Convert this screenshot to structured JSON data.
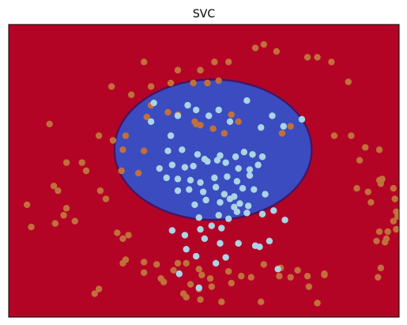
{
  "chart_data": {
    "type": "scatter",
    "title": "SVC",
    "xlabel": "",
    "ylabel": "",
    "xlim": [
      -1.45,
      1.32
    ],
    "ylim": [
      -1.25,
      1.25
    ],
    "axis_ticks": false,
    "grid": false,
    "background_color": "#b40426",
    "decision_region": {
      "label_inside": 1,
      "fill_color": "#3b4cc0",
      "boundary_color": "#4a1460",
      "center": [
        -0.0,
        0.18
      ],
      "radius_x": 0.7,
      "radius_y": 0.6
    },
    "series": [
      {
        "class": 0,
        "color": "#c1703a",
        "x": [
          -0.72,
          -0.44,
          -0.3,
          -0.14,
          -0.04,
          0.04,
          -0.49,
          -0.25,
          -0.09,
          0.01,
          0.11,
          0.3,
          0.36,
          0.45,
          0.67,
          0.74,
          0.84,
          0.96,
          -0.58,
          -0.44,
          -0.47,
          -0.32,
          -0.25,
          -0.13,
          -0.12,
          -0.09,
          0.0,
          0.13,
          0.08,
          0.18,
          0.49,
          0.55,
          0.86,
          0.98,
          -1.16,
          -0.81,
          -0.71,
          -0.62,
          -0.64,
          -0.49,
          -1.04,
          -0.93,
          -0.9,
          -0.65,
          -0.53,
          -1.13,
          -0.8,
          1.04,
          1.08,
          1.18,
          -1.32,
          -1.04,
          -1.1,
          -0.76,
          1.02,
          1.1,
          1.18,
          1.19,
          1.2,
          -1.06,
          -0.98,
          -0.6,
          1.12,
          1.28,
          1.29,
          1.3,
          1.31,
          1.28,
          1.3,
          1.24,
          -1.29,
          -1.12,
          -0.68,
          -0.64,
          1.16,
          1.18,
          1.23,
          1.22,
          -0.62,
          -0.64,
          -0.49,
          -0.4,
          -0.37,
          -0.25,
          -0.28,
          -0.19,
          -0.1,
          -0.08,
          -0.02,
          0.11,
          0.2,
          0.36,
          0.48,
          0.47,
          0.6,
          0.79,
          0.68,
          1.17,
          1.19,
          -0.81,
          -0.84,
          -0.49,
          -0.35,
          -0.16,
          -0.1,
          -0.01,
          0.13,
          0.27,
          0.55,
          0.67,
          0.79,
          -0.21,
          -0.19,
          -0.09,
          0.06,
          0.34,
          0.74
        ],
        "y": [
          0.72,
          0.72,
          0.75,
          0.75,
          0.75,
          0.77,
          0.93,
          0.86,
          0.86,
          0.93,
          0.93,
          1.05,
          1.08,
          1.02,
          0.97,
          0.97,
          0.93,
          0.76,
          0.65,
          0.56,
          0.46,
          0.5,
          0.48,
          0.42,
          0.4,
          0.39,
          0.36,
          0.48,
          0.32,
          0.42,
          0.32,
          0.38,
          0.3,
          0.3,
          0.4,
          0.3,
          0.26,
          0.3,
          0.18,
          0.17,
          0.07,
          0.07,
          0.0,
          0.0,
          -0.02,
          -0.13,
          -0.17,
          0.09,
          0.2,
          0.18,
          -0.29,
          -0.32,
          -0.17,
          -0.24,
          -0.15,
          -0.18,
          -0.08,
          -0.11,
          -0.07,
          -0.38,
          -0.43,
          -0.55,
          -0.27,
          -0.15,
          -0.24,
          -0.35,
          -0.39,
          -0.43,
          -0.5,
          -0.52,
          -0.48,
          -0.45,
          -0.53,
          -0.58,
          -0.6,
          -0.52,
          -0.58,
          -0.61,
          -0.76,
          -0.79,
          -0.78,
          -0.8,
          -0.92,
          -0.79,
          -0.85,
          -0.79,
          -0.84,
          -0.89,
          -0.92,
          -0.86,
          -0.9,
          -0.8,
          -0.83,
          -0.9,
          -0.85,
          -0.89,
          -0.99,
          -0.91,
          -0.83,
          -1.01,
          -1.05,
          -0.87,
          -0.95,
          -0.97,
          -1.01,
          -0.99,
          -0.96,
          -0.91,
          -0.91,
          -0.9,
          -0.88,
          -1.05,
          -1.08,
          -1.1,
          -1.12,
          -1.12,
          -1.13
        ]
      },
      {
        "class": 1,
        "color": "#abd4e6",
        "x": [
          -0.44,
          -0.3,
          -0.42,
          -0.25,
          -0.18,
          -0.12,
          -0.03,
          0.04,
          0.12,
          0.24,
          0.34,
          0.42,
          0.5,
          0.63,
          -0.32,
          -0.22,
          -0.11,
          -0.06,
          0.05,
          0.16,
          0.22,
          0.28,
          0.35,
          -0.38,
          -0.29,
          -0.2,
          -0.14,
          -0.04,
          0.03,
          0.09,
          0.18,
          0.26,
          0.32,
          -0.33,
          -0.25,
          -0.16,
          -0.09,
          0.01,
          0.1,
          0.17,
          0.26,
          -0.25,
          -0.17,
          -0.07,
          0.02,
          0.08,
          0.15,
          0.21,
          0.29,
          0.37,
          -0.13,
          -0.05,
          0.05,
          0.12,
          0.19,
          0.25,
          -0.1,
          0.04,
          0.11,
          0.17,
          0.24,
          0.35,
          0.43,
          0.51,
          -0.29,
          -0.2,
          -0.09,
          -0.01,
          0.06,
          -0.06,
          0.05,
          0.18,
          0.3,
          0.4,
          -0.12,
          0.02,
          0.09,
          0.33,
          0.15,
          -0.19,
          -0.24,
          -0.1,
          0.46
        ],
        "y": [
          0.42,
          0.3,
          0.58,
          0.47,
          0.56,
          0.52,
          0.47,
          0.52,
          0.42,
          0.6,
          0.37,
          0.47,
          0.38,
          0.44,
          0.17,
          0.18,
          0.14,
          0.1,
          0.13,
          0.12,
          0.16,
          0.14,
          0.12,
          0.02,
          0.05,
          0.03,
          0.04,
          0.08,
          0.09,
          0.07,
          0.02,
          0.01,
          0.05,
          -0.06,
          -0.07,
          -0.08,
          -0.1,
          -0.06,
          -0.05,
          -0.09,
          -0.04,
          -0.17,
          -0.16,
          -0.18,
          -0.14,
          -0.2,
          -0.22,
          -0.15,
          -0.16,
          -0.2,
          -0.29,
          -0.25,
          -0.27,
          -0.24,
          -0.28,
          -0.3,
          -0.4,
          -0.38,
          -0.41,
          -0.35,
          -0.36,
          -0.37,
          -0.34,
          -0.42,
          -0.51,
          -0.55,
          -0.5,
          -0.47,
          -0.49,
          -0.58,
          -0.62,
          -0.62,
          -0.64,
          -0.6,
          -0.73,
          -0.79,
          -0.74,
          -0.65,
          -0.31,
          -0.67,
          -0.88,
          -1.0,
          -0.84
        ]
      }
    ]
  }
}
